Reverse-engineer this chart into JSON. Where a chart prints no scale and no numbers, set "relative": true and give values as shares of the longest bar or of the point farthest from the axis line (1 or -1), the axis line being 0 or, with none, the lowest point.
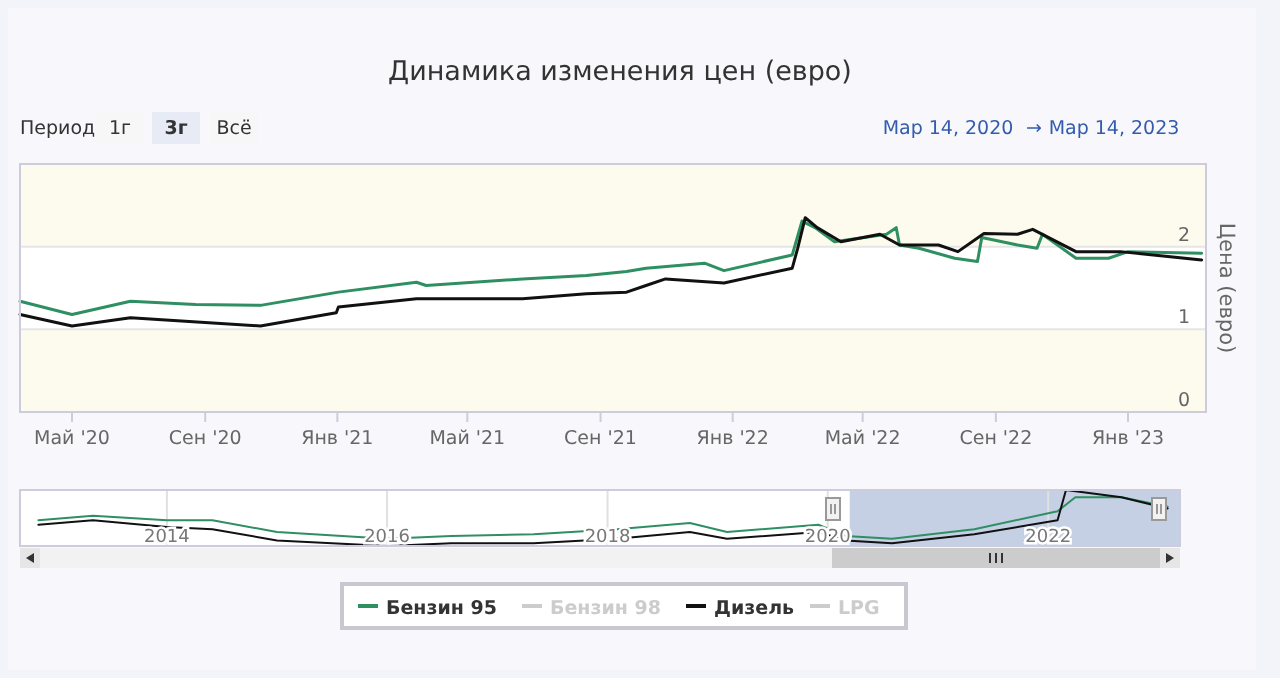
{
  "chart_data": [
    {
      "type": "line",
      "title": "Динамика изменения цен (евро)",
      "ylabel": "Цена (евро)",
      "annotations": [
        "Период",
        "1г",
        "3г",
        "Всё",
        "Мар 14, 2020",
        "→",
        "Мар 14, 2023"
      ],
      "xlim": [
        "2020-03-14",
        "2023-03-14"
      ],
      "ylim": [
        0,
        3
      ],
      "yticks": [
        0,
        1,
        2
      ],
      "xticks": [
        {
          "value": "2020-05-01",
          "label": "Май '20"
        },
        {
          "value": "2020-09-01",
          "label": "Сен '20"
        },
        {
          "value": "2021-01-01",
          "label": "Янв '21"
        },
        {
          "value": "2021-05-01",
          "label": "Май '21"
        },
        {
          "value": "2021-09-01",
          "label": "Сен '21"
        },
        {
          "value": "2022-01-01",
          "label": "Янв '22"
        },
        {
          "value": "2022-05-01",
          "label": "Май '22"
        },
        {
          "value": "2022-09-01",
          "label": "Сен '22"
        },
        {
          "value": "2023-01-01",
          "label": "Янв '23"
        }
      ],
      "grid": "y",
      "legend": "bottom",
      "bands": [
        {
          "axis": "y",
          "from": 0,
          "to": 1,
          "color": "#fcfbee"
        },
        {
          "axis": "y",
          "from": 2,
          "to": 3,
          "color": "#fcfbee"
        }
      ],
      "series": [
        {
          "name": "Бензин 95",
          "color": "#2e8f62",
          "x": [
            "2020-03-14",
            "2020-05-01",
            "2020-06-24",
            "2020-08-23",
            "2020-10-22",
            "2021-01-02",
            "2021-03-15",
            "2021-03-24",
            "2021-06-21",
            "2021-08-19",
            "2021-09-25",
            "2021-10-13",
            "2021-12-06",
            "2021-12-24",
            "2022-02-25",
            "2022-03-06",
            "2022-03-18",
            "2022-04-05",
            "2022-05-23",
            "2022-06-01",
            "2022-06-04",
            "2022-06-22",
            "2022-07-25",
            "2022-08-15",
            "2022-08-19",
            "2022-09-21",
            "2022-10-09",
            "2022-10-14",
            "2022-11-14",
            "2022-12-14",
            "2023-01-01",
            "2023-03-10"
          ],
          "values": [
            1.34,
            1.18,
            1.34,
            1.3,
            1.29,
            1.45,
            1.57,
            1.53,
            1.61,
            1.65,
            1.7,
            1.74,
            1.8,
            1.71,
            1.9,
            2.31,
            2.23,
            2.06,
            2.15,
            2.23,
            2.02,
            1.98,
            1.86,
            1.82,
            2.11,
            2.02,
            1.98,
            2.15,
            1.86,
            1.86,
            1.94,
            1.92
          ]
        },
        {
          "name": "Бензин 98",
          "color": "#cccccc"
        },
        {
          "name": "Дизель",
          "color": "#111111",
          "x": [
            "2020-03-14",
            "2020-05-01",
            "2020-06-24",
            "2020-10-22",
            "2020-12-31",
            "2021-01-02",
            "2021-03-15",
            "2021-06-21",
            "2021-08-19",
            "2021-09-25",
            "2021-10-13",
            "2021-10-31",
            "2021-12-24",
            "2022-02-25",
            "2022-03-02",
            "2022-03-09",
            "2022-03-20",
            "2022-04-11",
            "2022-05-17",
            "2022-06-04",
            "2022-07-10",
            "2022-07-28",
            "2022-08-21",
            "2022-09-21",
            "2022-10-05",
            "2022-11-14",
            "2022-12-25",
            "2023-03-10"
          ],
          "values": [
            1.18,
            1.04,
            1.14,
            1.04,
            1.2,
            1.27,
            1.37,
            1.37,
            1.43,
            1.45,
            1.53,
            1.61,
            1.56,
            1.74,
            1.98,
            2.35,
            2.23,
            2.06,
            2.15,
            2.02,
            2.02,
            1.94,
            2.16,
            2.15,
            2.21,
            1.94,
            1.94,
            1.84
          ]
        },
        {
          "name": "LPG",
          "color": "#cccccc"
        }
      ]
    },
    {
      "type": "line",
      "relative": true,
      "xlim": [
        "2012-09-01",
        "2023-03-14"
      ],
      "tick_labels": "x",
      "grid": "x",
      "xticks": [
        {
          "value": "2014-01-01",
          "label": "2014"
        },
        {
          "value": "2016-01-01",
          "label": "2016"
        },
        {
          "value": "2018-01-01",
          "label": "2018"
        },
        {
          "value": "2020-01-01",
          "label": "2020"
        },
        {
          "value": "2022-01-01",
          "label": "2022"
        }
      ],
      "bands": [
        {
          "axis": "x",
          "from": "2020-03-14",
          "to": "2023-03-14",
          "color": "#aebcd8"
        }
      ],
      "series": [
        {
          "color": "#2e8f62",
          "x": [
            "2012-11",
            "2013-05",
            "2014-01",
            "2014-06",
            "2015-01",
            "2016-01",
            "2016-08",
            "2017-05",
            "2018-02",
            "2018-10",
            "2019-02",
            "2019-12",
            "2020-03",
            "2020-08",
            "2021-05",
            "2022-02",
            "2022-04",
            "2022-09",
            "2023-02"
          ],
          "values": [
            0.46,
            0.54,
            0.46,
            0.46,
            0.25,
            0.13,
            0.18,
            0.21,
            0.3,
            0.41,
            0.25,
            0.38,
            0.18,
            0.13,
            0.3,
            0.62,
            0.87,
            0.87,
            0.7
          ]
        },
        {
          "color": "#111111",
          "x": [
            "2012-11",
            "2013-05",
            "2014-01",
            "2014-06",
            "2015-01",
            "2016-01",
            "2016-08",
            "2017-05",
            "2018-02",
            "2018-10",
            "2019-02",
            "2019-12",
            "2020-03",
            "2020-08",
            "2021-05",
            "2022-02",
            "2022-03",
            "2022-09",
            "2023-02"
          ],
          "values": [
            0.38,
            0.46,
            0.34,
            0.3,
            0.1,
            0,
            0.05,
            0.05,
            0.13,
            0.25,
            0.13,
            0.25,
            0.1,
            0.05,
            0.21,
            0.46,
            1,
            0.87,
            0.67
          ]
        }
      ]
    }
  ]
}
